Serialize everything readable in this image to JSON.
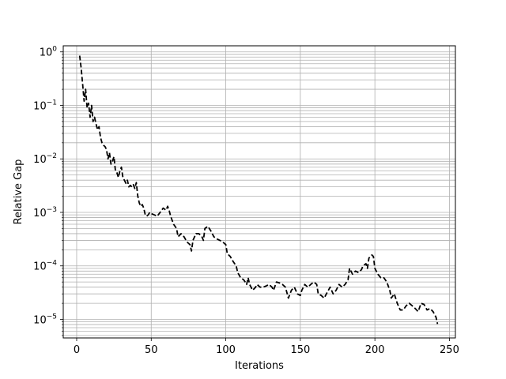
{
  "chart_data": {
    "type": "line",
    "title": "",
    "xlabel": "Iterations",
    "ylabel": "Relative Gap",
    "x_scale": "linear",
    "y_scale": "log",
    "xlim": [
      -9,
      254
    ],
    "ylim": [
      4.5e-06,
      1.3
    ],
    "x_ticks": [
      0,
      50,
      100,
      150,
      200,
      250
    ],
    "x_tick_labels": [
      "0",
      "50",
      "100",
      "150",
      "200",
      "250"
    ],
    "y_ticks": [
      1e-05,
      0.0001,
      0.001,
      0.01,
      0.1,
      1
    ],
    "y_tick_labels": [
      {
        "base": "10",
        "exp": "−5"
      },
      {
        "base": "10",
        "exp": "−4"
      },
      {
        "base": "10",
        "exp": "−3"
      },
      {
        "base": "10",
        "exp": "−2"
      },
      {
        "base": "10",
        "exp": "−1"
      },
      {
        "base": "10",
        "exp": "0"
      }
    ],
    "grid": true,
    "grid_minor_y": true,
    "line_style": "dashed",
    "line_color": "#000000",
    "series": [
      {
        "values": [
          [
            2,
            0.85
          ],
          [
            3,
            0.5
          ],
          [
            4,
            0.25
          ],
          [
            5,
            0.12
          ],
          [
            6,
            0.2
          ],
          [
            7,
            0.09
          ],
          [
            8,
            0.11
          ],
          [
            9,
            0.06
          ],
          [
            10,
            0.1
          ],
          [
            11,
            0.05
          ],
          [
            12,
            0.06
          ],
          [
            13,
            0.045
          ],
          [
            14,
            0.035
          ],
          [
            15,
            0.04
          ],
          [
            16,
            0.025
          ],
          [
            17,
            0.02
          ],
          [
            18,
            0.018
          ],
          [
            19,
            0.017
          ],
          [
            20,
            0.015
          ],
          [
            21,
            0.01
          ],
          [
            22,
            0.013
          ],
          [
            23,
            0.008
          ],
          [
            24,
            0.009
          ],
          [
            25,
            0.011
          ],
          [
            26,
            0.006
          ],
          [
            27,
            0.0055
          ],
          [
            28,
            0.0045
          ],
          [
            29,
            0.006
          ],
          [
            30,
            0.007
          ],
          [
            31,
            0.0045
          ],
          [
            32,
            0.004
          ],
          [
            33,
            0.0035
          ],
          [
            34,
            0.004
          ],
          [
            35,
            0.003
          ],
          [
            36,
            0.0032
          ],
          [
            37,
            0.003
          ],
          [
            38,
            0.0033
          ],
          [
            39,
            0.0028
          ],
          [
            40,
            0.0036
          ],
          [
            41,
            0.002
          ],
          [
            42,
            0.0015
          ],
          [
            43,
            0.0013
          ],
          [
            44,
            0.0014
          ],
          [
            45,
            0.0012
          ],
          [
            46,
            0.0009
          ],
          [
            47,
            0.00085
          ],
          [
            48,
            0.0009
          ],
          [
            49,
            0.001
          ],
          [
            50,
            0.00095
          ],
          [
            52,
            0.0009
          ],
          [
            54,
            0.00085
          ],
          [
            56,
            0.001
          ],
          [
            58,
            0.0012
          ],
          [
            60,
            0.0011
          ],
          [
            61,
            0.0013
          ],
          [
            62,
            0.0011
          ],
          [
            63,
            0.00085
          ],
          [
            65,
            0.0006
          ],
          [
            67,
            0.0005
          ],
          [
            68,
            0.00035
          ],
          [
            70,
            0.0004
          ],
          [
            72,
            0.00035
          ],
          [
            74,
            0.00028
          ],
          [
            76,
            0.00025
          ],
          [
            77,
            0.00019
          ],
          [
            78,
            0.0003
          ],
          [
            80,
            0.0004
          ],
          [
            82,
            0.0004
          ],
          [
            84,
            0.00035
          ],
          [
            85,
            0.0003
          ],
          [
            86,
            0.0005
          ],
          [
            88,
            0.00055
          ],
          [
            90,
            0.00045
          ],
          [
            92,
            0.00035
          ],
          [
            94,
            0.00032
          ],
          [
            96,
            0.0003
          ],
          [
            98,
            0.00028
          ],
          [
            100,
            0.00025
          ],
          [
            101,
            0.00017
          ],
          [
            103,
            0.00015
          ],
          [
            105,
            0.00012
          ],
          [
            107,
            0.0001
          ],
          [
            108,
            7.5e-05
          ],
          [
            110,
            6e-05
          ],
          [
            112,
            5.5e-05
          ],
          [
            113,
            5e-05
          ],
          [
            114,
            4.5e-05
          ],
          [
            115,
            6e-05
          ],
          [
            116,
            4.5e-05
          ],
          [
            118,
            3.5e-05
          ],
          [
            120,
            4e-05
          ],
          [
            121,
            4.5e-05
          ],
          [
            123,
            4e-05
          ],
          [
            125,
            4e-05
          ],
          [
            127,
            4.2e-05
          ],
          [
            129,
            4.5e-05
          ],
          [
            131,
            4e-05
          ],
          [
            132,
            3.5e-05
          ],
          [
            134,
            5e-05
          ],
          [
            136,
            4.8e-05
          ],
          [
            138,
            4.5e-05
          ],
          [
            140,
            4e-05
          ],
          [
            142,
            2.5e-05
          ],
          [
            144,
            3.5e-05
          ],
          [
            146,
            4e-05
          ],
          [
            148,
            3e-05
          ],
          [
            150,
            2.8e-05
          ],
          [
            151,
            3.5e-05
          ],
          [
            153,
            4.5e-05
          ],
          [
            155,
            4e-05
          ],
          [
            157,
            4.5e-05
          ],
          [
            159,
            5e-05
          ],
          [
            161,
            4.5e-05
          ],
          [
            162,
            3e-05
          ],
          [
            164,
            2.8e-05
          ],
          [
            166,
            2.5e-05
          ],
          [
            168,
            3.2e-05
          ],
          [
            170,
            4e-05
          ],
          [
            172,
            3e-05
          ],
          [
            174,
            3.5e-05
          ],
          [
            176,
            4.5e-05
          ],
          [
            178,
            4e-05
          ],
          [
            180,
            4.5e-05
          ],
          [
            182,
            5.5e-05
          ],
          [
            183,
            9e-05
          ],
          [
            185,
            7e-05
          ],
          [
            187,
            8e-05
          ],
          [
            189,
            7.5e-05
          ],
          [
            191,
            8.5e-05
          ],
          [
            192,
            0.0001
          ],
          [
            194,
            0.00011
          ],
          [
            195,
            9e-05
          ],
          [
            196,
            0.00014
          ],
          [
            198,
            0.00016
          ],
          [
            199,
            0.00015
          ],
          [
            200,
            9e-05
          ],
          [
            202,
            7e-05
          ],
          [
            204,
            6e-05
          ],
          [
            206,
            6e-05
          ],
          [
            208,
            5e-05
          ],
          [
            210,
            3.5e-05
          ],
          [
            211,
            2.5e-05
          ],
          [
            213,
            3e-05
          ],
          [
            215,
            2e-05
          ],
          [
            217,
            1.5e-05
          ],
          [
            219,
            1.5e-05
          ],
          [
            221,
            1.8e-05
          ],
          [
            223,
            2e-05
          ],
          [
            225,
            1.8e-05
          ],
          [
            227,
            1.6e-05
          ],
          [
            229,
            1.4e-05
          ],
          [
            231,
            2e-05
          ],
          [
            233,
            1.9e-05
          ],
          [
            235,
            1.5e-05
          ],
          [
            237,
            1.6e-05
          ],
          [
            239,
            1.4e-05
          ],
          [
            241,
            1.1e-05
          ],
          [
            242,
            8.2e-06
          ]
        ]
      }
    ]
  }
}
